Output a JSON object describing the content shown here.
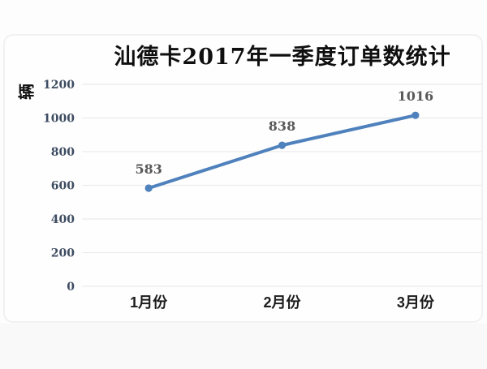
{
  "chart": {
    "title": "汕德卡2017年一季度订单数统计",
    "y_axis_title": "辆"
  },
  "chart_data": {
    "type": "line",
    "title": "汕德卡2017年一季度订单数统计",
    "ylabel": "辆",
    "xlabel": "",
    "categories": [
      "1月份",
      "2月份",
      "3月份"
    ],
    "values": [
      583,
      838,
      1016
    ],
    "data_labels": [
      "583",
      "838",
      "1016"
    ],
    "yticks": [
      0,
      200,
      400,
      600,
      800,
      1000,
      1200
    ],
    "ylim": [
      0,
      1200
    ],
    "grid": "horizontal",
    "legend": "none",
    "marker": "circle",
    "colors": {
      "line": "#4f81bd",
      "marker": "#4f81bd",
      "grid": "#ebebeb",
      "tick_label": "#3e4c62",
      "data_label": "#595959",
      "category_label": "#1c1c1c",
      "title": "#0f0f0f"
    }
  }
}
